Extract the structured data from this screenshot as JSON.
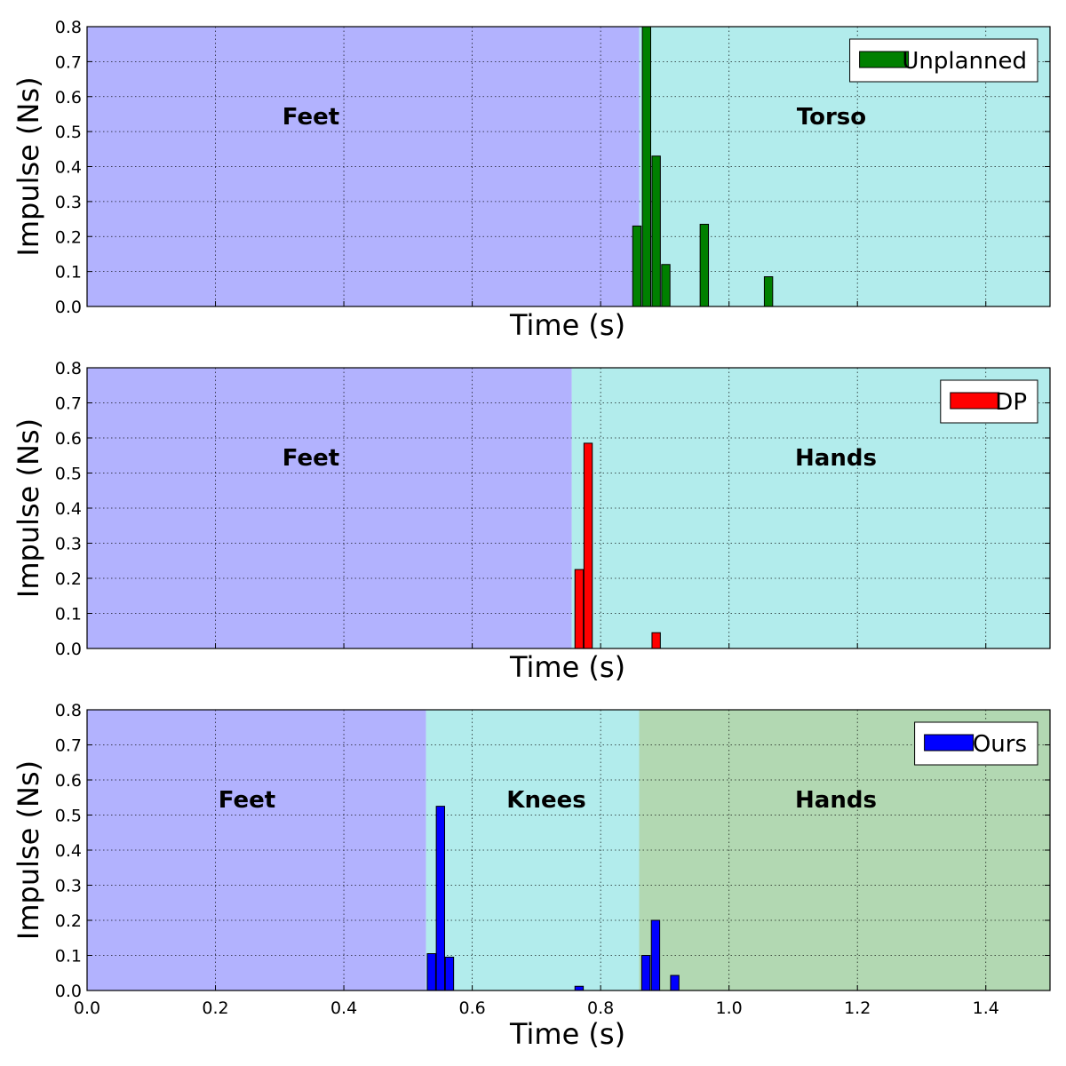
{
  "chart_data": [
    {
      "type": "bar",
      "xlabel": "Time (s)",
      "ylabel": "Impulse (Ns)",
      "xlim": [
        0.0,
        1.5
      ],
      "ylim": [
        0.0,
        0.8
      ],
      "yticks": [
        "0.0",
        "0.1",
        "0.2",
        "0.3",
        "0.4",
        "0.5",
        "0.6",
        "0.7",
        "0.8"
      ],
      "xticks": [],
      "grid": true,
      "legend_position": "top-right",
      "regions": [
        {
          "label": "Feet",
          "start": 0.0,
          "end": 0.86,
          "color": "#b2b2fe"
        },
        {
          "label": "Torso",
          "start": 0.86,
          "end": 1.5,
          "color": "#b2ecec"
        }
      ],
      "series": [
        {
          "name": "Unplanned",
          "color": "#008000",
          "bar_width": 0.013,
          "x": [
            0.85,
            0.865,
            0.88,
            0.895,
            0.955,
            1.055
          ],
          "values": [
            0.23,
            0.8,
            0.43,
            0.12,
            0.235,
            0.085
          ]
        }
      ]
    },
    {
      "type": "bar",
      "xlabel": "Time (s)",
      "ylabel": "Impulse (Ns)",
      "xlim": [
        0.0,
        1.5
      ],
      "ylim": [
        0.0,
        0.8
      ],
      "yticks": [
        "0.0",
        "0.1",
        "0.2",
        "0.3",
        "0.4",
        "0.5",
        "0.6",
        "0.7",
        "0.8"
      ],
      "xticks": [],
      "grid": true,
      "legend_position": "top-right",
      "regions": [
        {
          "label": "Feet",
          "start": 0.0,
          "end": 0.755,
          "color": "#b2b2fe"
        },
        {
          "label": "Hands",
          "start": 0.755,
          "end": 1.5,
          "color": "#b2ecec"
        }
      ],
      "series": [
        {
          "name": "DP",
          "color": "#ff0000",
          "bar_width": 0.013,
          "x": [
            0.76,
            0.774,
            0.88
          ],
          "values": [
            0.225,
            0.585,
            0.045
          ]
        }
      ]
    },
    {
      "type": "bar",
      "xlabel": "Time (s)",
      "ylabel": "Impulse (Ns)",
      "xlim": [
        0.0,
        1.5
      ],
      "ylim": [
        0.0,
        0.8
      ],
      "yticks": [
        "0.0",
        "0.1",
        "0.2",
        "0.3",
        "0.4",
        "0.5",
        "0.6",
        "0.7",
        "0.8"
      ],
      "xticks": [
        "0.0",
        "0.2",
        "0.4",
        "0.6",
        "0.8",
        "1.0",
        "1.2",
        "1.4"
      ],
      "grid": true,
      "legend_position": "top-right",
      "regions": [
        {
          "label": "Feet",
          "start": 0.0,
          "end": 0.528,
          "color": "#b2b2fe"
        },
        {
          "label": "Knees",
          "start": 0.528,
          "end": 0.86,
          "color": "#b2ecec"
        },
        {
          "label": "Hands",
          "start": 0.86,
          "end": 1.5,
          "color": "#b2d8b2"
        }
      ],
      "series": [
        {
          "name": "Ours",
          "color": "#0000ff",
          "bar_width": 0.013,
          "x": [
            0.53,
            0.544,
            0.558,
            0.76,
            0.864,
            0.879,
            0.909
          ],
          "values": [
            0.105,
            0.525,
            0.095,
            0.012,
            0.1,
            0.2,
            0.043
          ]
        }
      ]
    }
  ]
}
